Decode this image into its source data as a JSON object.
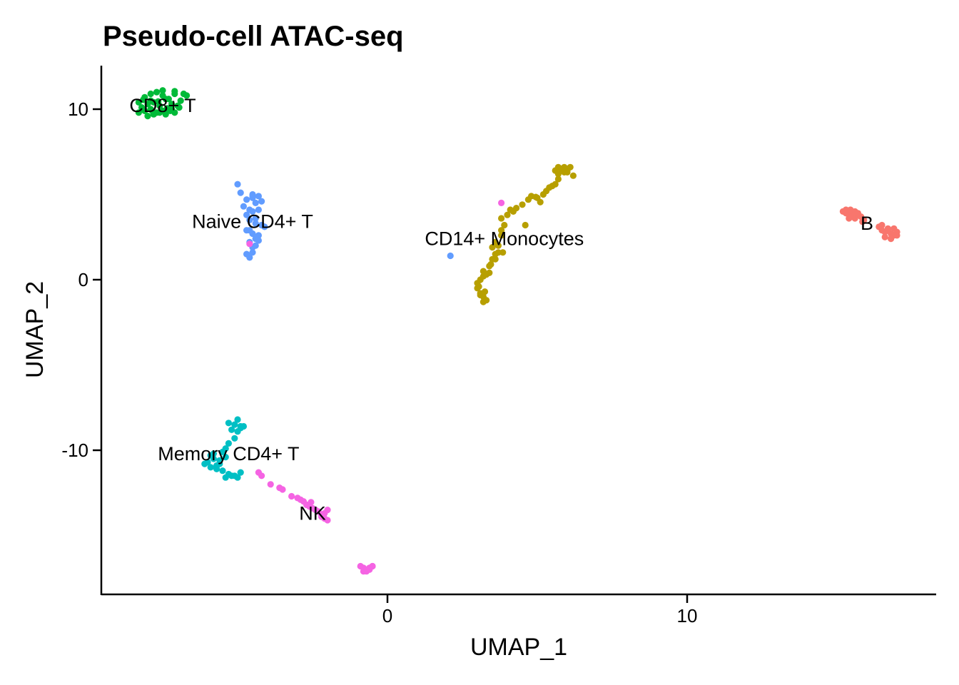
{
  "chart_data": {
    "type": "scatter",
    "title": "Pseudo-cell ATAC-seq",
    "xlabel": "UMAP_1",
    "ylabel": "UMAP_2",
    "xlim": [
      -9.5,
      18.2
    ],
    "ylim": [
      -18.6,
      12.6
    ],
    "x_ticks": [
      0,
      10
    ],
    "y_ticks": [
      -10,
      0,
      10
    ],
    "grid": false,
    "legend": "none",
    "series": [
      {
        "name": "CD8+ T",
        "color": "#00BA38",
        "label_pos": [
          -7.5,
          10.2
        ],
        "x": [
          -8.3,
          -8.1,
          -7.9,
          -7.7,
          -7.5,
          -7.3,
          -7.1,
          -6.9,
          -8.2,
          -8.0,
          -7.8,
          -7.6,
          -7.4,
          -7.2,
          -7.0,
          -6.8,
          -8.3,
          -8.1,
          -7.9,
          -7.7,
          -7.5,
          -7.3,
          -7.1,
          -8.0,
          -7.8,
          -7.6,
          -7.4,
          -7.2,
          -7.9,
          -7.5,
          -7.1,
          -6.7,
          -8.15,
          -7.65,
          -7.25,
          -6.95,
          -7.85,
          -7.35
        ],
        "y": [
          10.4,
          10.7,
          10.9,
          11.0,
          10.8,
          10.6,
          10.9,
          10.5,
          10.1,
          10.3,
          10.4,
          10.2,
          10.6,
          10.3,
          10.2,
          10.9,
          9.8,
          9.9,
          10.0,
          9.8,
          9.9,
          10.0,
          9.8,
          9.6,
          9.7,
          9.8,
          9.7,
          10.0,
          10.5,
          11.1,
          11.05,
          10.8,
          10.55,
          10.45,
          9.9,
          10.1,
          9.9,
          10.05
        ]
      },
      {
        "name": "Naive CD4+ T",
        "color": "#619CFF",
        "label_pos": [
          -4.5,
          3.4
        ],
        "x": [
          -5.0,
          -4.9,
          -4.7,
          -4.5,
          -4.4,
          -4.3,
          -4.8,
          -4.6,
          -4.5,
          -4.3,
          -4.2,
          -4.7,
          -4.6,
          -4.4,
          -4.2,
          -4.1,
          -4.7,
          -4.5,
          -4.4,
          -4.3,
          -4.6,
          -4.5,
          -4.4,
          -4.3,
          -4.7,
          -4.6,
          -4.5,
          -4.5,
          2.1,
          -4.6,
          -4.4,
          -4.5
        ],
        "y": [
          5.6,
          5.1,
          4.7,
          4.8,
          4.5,
          4.9,
          4.3,
          4.1,
          4.0,
          4.1,
          4.6,
          3.8,
          3.5,
          3.3,
          3.2,
          3.1,
          2.9,
          2.7,
          2.4,
          2.6,
          2.2,
          1.9,
          2.0,
          2.3,
          1.5,
          1.3,
          1.6,
          4.9,
          1.4,
          2.9,
          3.6,
          5.0
        ]
      },
      {
        "name": "CD14+ Monocytes",
        "color": "#B79F00",
        "label_pos": [
          3.9,
          2.4
        ],
        "x": [
          3.0,
          3.1,
          3.2,
          3.3,
          3.2,
          3.1,
          3.0,
          3.2,
          3.3,
          3.4,
          3.1,
          3.2,
          3.4,
          3.5,
          3.6,
          3.5,
          3.6,
          3.7,
          3.8,
          3.7,
          3.6,
          3.8,
          3.9,
          3.8,
          4.0,
          4.1,
          4.2,
          4.3,
          4.5,
          4.7,
          4.8,
          5.0,
          5.2,
          5.3,
          5.4,
          5.5,
          5.6,
          5.7,
          5.8,
          5.6,
          5.7,
          5.8,
          5.9,
          6.0,
          6.1,
          6.2,
          5.9,
          6.0,
          5.7,
          5.9,
          4.6,
          3.85,
          3.05,
          3.25,
          3.45,
          4.95,
          5.1
        ],
        "y": [
          -0.5,
          -0.8,
          -1.0,
          -1.2,
          -1.3,
          -0.9,
          -0.2,
          0.2,
          0.3,
          0.4,
          0.0,
          0.5,
          0.8,
          1.2,
          1.5,
          1.9,
          2.2,
          2.0,
          2.6,
          1.6,
          1.2,
          2.9,
          3.2,
          3.6,
          3.8,
          4.1,
          4.0,
          4.2,
          4.4,
          4.7,
          4.9,
          4.8,
          5.0,
          5.2,
          5.4,
          5.5,
          5.6,
          6.2,
          6.5,
          6.4,
          6.6,
          6.5,
          6.3,
          6.4,
          6.6,
          6.1,
          6.5,
          6.3,
          5.9,
          6.6,
          3.2,
          1.6,
          -0.4,
          -0.7,
          0.9,
          4.85,
          4.55
        ]
      },
      {
        "name": "B",
        "color": "#F8766D",
        "label_pos": [
          16.0,
          3.3
        ],
        "x": [
          15.2,
          15.3,
          15.4,
          15.5,
          15.6,
          15.7,
          15.4,
          15.5,
          15.6,
          15.8,
          15.9,
          15.3,
          15.7,
          16.4,
          16.5,
          16.6,
          16.7,
          16.8,
          16.9,
          17.0,
          16.6,
          16.8,
          17.0,
          16.7,
          16.9,
          16.5,
          15.45,
          15.85
        ],
        "y": [
          4.0,
          3.9,
          3.8,
          3.9,
          4.0,
          3.8,
          3.6,
          3.7,
          3.6,
          3.7,
          3.5,
          4.1,
          3.9,
          3.1,
          2.9,
          2.8,
          3.0,
          2.7,
          2.6,
          2.8,
          2.5,
          2.4,
          2.6,
          2.9,
          3.0,
          3.2,
          4.1,
          3.4
        ]
      },
      {
        "name": "Memory CD4+ T",
        "color": "#00BFC4",
        "label_pos": [
          -5.3,
          -10.2
        ],
        "x": [
          -5.0,
          -5.1,
          -4.9,
          -4.8,
          -5.0,
          -5.2,
          -4.9,
          -5.1,
          -5.3,
          -5.4,
          -5.5,
          -5.4,
          -5.6,
          -5.7,
          -5.8,
          -5.9,
          -6.0,
          -6.1,
          -5.9,
          -5.7,
          -5.5,
          -5.3,
          -5.1,
          -4.9,
          -5.8,
          -5.6,
          -5.4,
          -5.2,
          -5.0,
          -5.3
        ],
        "y": [
          -8.2,
          -8.5,
          -8.7,
          -8.6,
          -8.9,
          -8.8,
          -8.6,
          -9.3,
          -9.6,
          -9.9,
          -10.1,
          -10.4,
          -10.6,
          -10.9,
          -10.5,
          -10.3,
          -10.7,
          -10.8,
          -11.0,
          -11.1,
          -11.2,
          -11.4,
          -11.5,
          -11.3,
          -10.2,
          -10.8,
          -11.6,
          -11.5,
          -11.6,
          -8.4
        ]
      },
      {
        "name": "NK",
        "color": "#F564E3",
        "label_pos": [
          -2.5,
          -13.7
        ],
        "x": [
          -4.3,
          -4.2,
          -3.6,
          -3.5,
          -3.9,
          -3.2,
          -3.0,
          -2.9,
          -2.8,
          -2.7,
          -2.6,
          -2.5,
          -2.4,
          -2.3,
          -2.2,
          -2.1,
          -2.0,
          -2.2,
          -2.1,
          -2.0,
          -0.9,
          -0.8,
          -0.7,
          -0.6,
          -0.5,
          -0.8,
          -0.7,
          -0.6,
          -0.5,
          3.8,
          -4.6,
          -2.55
        ],
        "y": [
          -11.3,
          -11.5,
          -12.2,
          -12.3,
          -12.0,
          -12.7,
          -12.8,
          -12.9,
          -13.0,
          -13.2,
          -13.3,
          -13.4,
          -13.5,
          -13.6,
          -13.8,
          -14.0,
          -14.1,
          -13.9,
          -13.7,
          -13.5,
          -16.8,
          -16.9,
          -17.0,
          -16.9,
          -16.8,
          -17.1,
          -17.1,
          -17.0,
          -16.8,
          4.5,
          2.1,
          -13.05
        ]
      }
    ]
  }
}
